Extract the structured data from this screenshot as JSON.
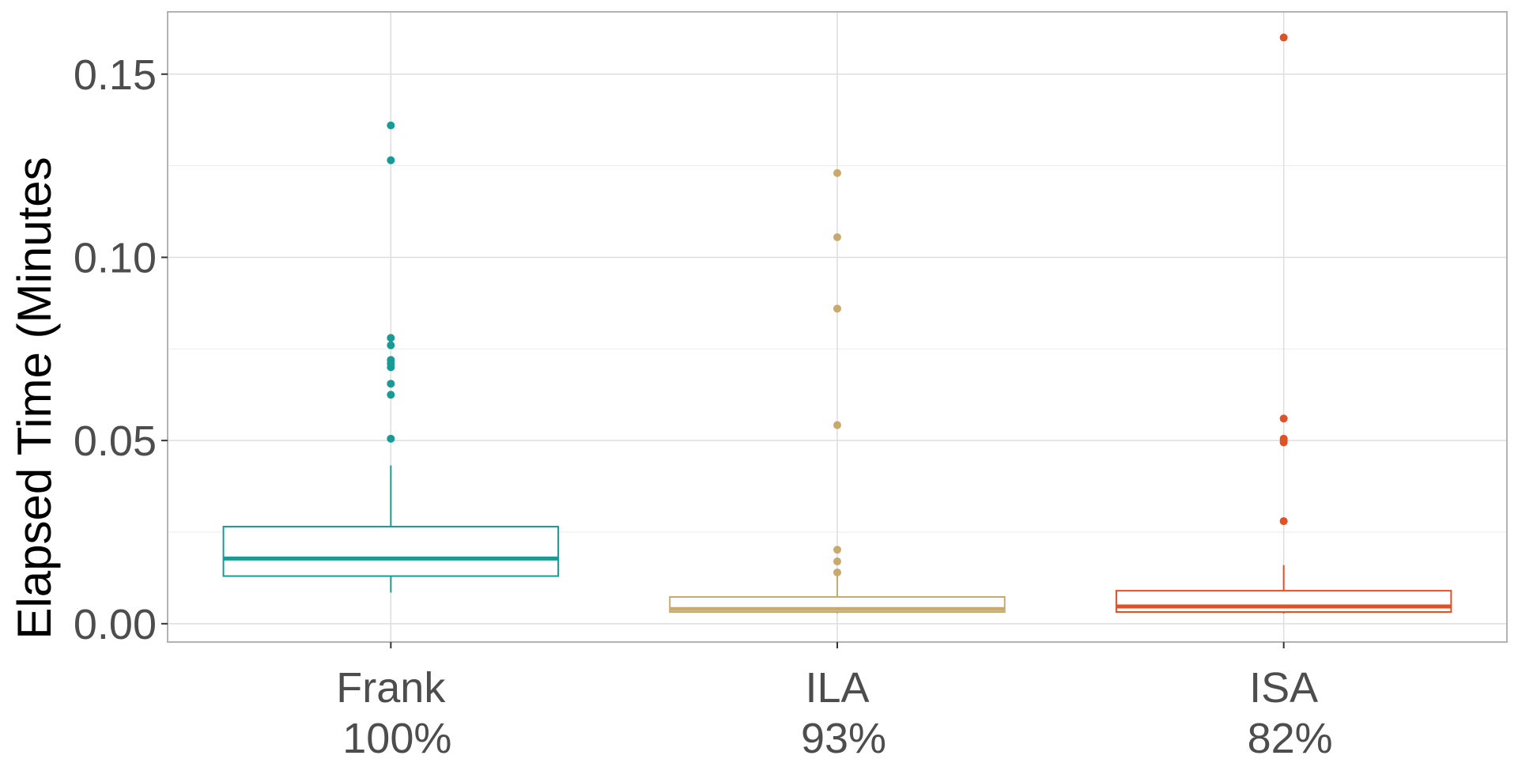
{
  "chart_data": {
    "type": "boxplot",
    "ylabel": "Elapsed Time (Minutes",
    "xlabel": "",
    "ylim": [
      -0.005,
      0.167
    ],
    "yticks": [
      0.0,
      0.05,
      0.1,
      0.15
    ],
    "ytick_labels": [
      "0.00",
      "0.05",
      "0.10",
      "0.15"
    ],
    "grid": true,
    "legend": "none",
    "categories": [
      {
        "label": "Frank",
        "sublabel": "100%",
        "color": "#1a9a95"
      },
      {
        "label": "ILA",
        "sublabel": "93%",
        "color": "#c8aa6e"
      },
      {
        "label": "ISA",
        "sublabel": "82%",
        "color": "#e05126"
      }
    ],
    "series": [
      {
        "category": "Frank",
        "whisker_low": 0.0085,
        "q1": 0.013,
        "median": 0.0178,
        "q3": 0.0265,
        "whisker_high": 0.0432,
        "outliers": [
          0.0505,
          0.0625,
          0.0655,
          0.07,
          0.071,
          0.072,
          0.076,
          0.078,
          0.1265,
          0.136
        ]
      },
      {
        "category": "ILA",
        "whisker_low": 0.0028,
        "q1": 0.0032,
        "median": 0.004,
        "q3": 0.0073,
        "whisker_high": 0.014,
        "outliers": [
          0.014,
          0.017,
          0.0202,
          0.0542,
          0.086,
          0.1055,
          0.123
        ]
      },
      {
        "category": "ISA",
        "whisker_low": 0.0028,
        "q1": 0.0032,
        "median": 0.0047,
        "q3": 0.009,
        "whisker_high": 0.016,
        "outliers": [
          0.028,
          0.0495,
          0.05,
          0.0505,
          0.056,
          0.16
        ]
      }
    ]
  }
}
